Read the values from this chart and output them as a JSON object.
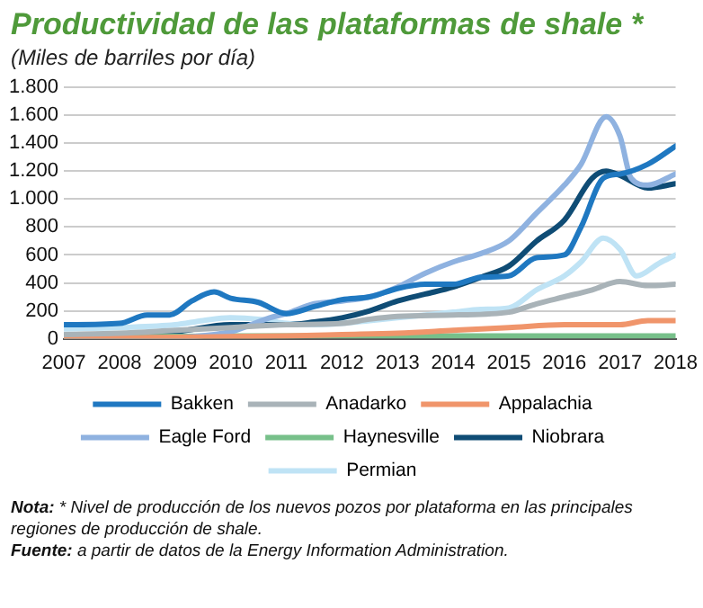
{
  "chart_data": {
    "type": "line",
    "title": "Productividad de las plataformas de shale *",
    "subtitle": "(Miles de barriles por día)",
    "xlim": [
      2007,
      2018
    ],
    "xticks": [
      2007,
      2008,
      2009,
      2010,
      2011,
      2012,
      2013,
      2014,
      2015,
      2016,
      2017,
      2018
    ],
    "ylim": [
      0,
      1800
    ],
    "yticks": [
      {
        "value": 0,
        "label": "0"
      },
      {
        "value": 200,
        "label": "200"
      },
      {
        "value": 400,
        "label": "400"
      },
      {
        "value": 600,
        "label": "600"
      },
      {
        "value": 800,
        "label": "800"
      },
      {
        "value": 1000,
        "label": "1.000"
      },
      {
        "value": 1200,
        "label": "1.200"
      },
      {
        "value": 1400,
        "label": "1.400"
      },
      {
        "value": 1600,
        "label": "1.600"
      },
      {
        "value": 1800,
        "label": "1.800"
      }
    ],
    "grid": "y",
    "legend": "bottom",
    "marker": "none",
    "line_style": "solid",
    "series": [
      {
        "name": "Bakken",
        "color": "#1f78c1",
        "x": [
          2007,
          2008,
          2008.5,
          2008.9,
          2009.3,
          2009.7,
          2010,
          2010.5,
          2011,
          2011.5,
          2012,
          2012.5,
          2013,
          2013.5,
          2014,
          2014.5,
          2015,
          2015.5,
          2016,
          2016.3,
          2016.7,
          2017,
          2017.5,
          2018
        ],
        "values": [
          100,
          110,
          170,
          170,
          270,
          335,
          290,
          260,
          180,
          230,
          280,
          300,
          360,
          390,
          390,
          440,
          450,
          580,
          600,
          800,
          1150,
          1180,
          1250,
          1380
        ]
      },
      {
        "name": "Anadarko",
        "color": "#a9b3b8",
        "x": [
          2007,
          2008,
          2009,
          2010,
          2011,
          2012,
          2012.5,
          2013,
          2014,
          2015,
          2015.5,
          2016,
          2016.5,
          2017,
          2017.5,
          2018
        ],
        "values": [
          30,
          40,
          60,
          80,
          100,
          110,
          140,
          160,
          170,
          190,
          250,
          300,
          350,
          410,
          380,
          390
        ]
      },
      {
        "name": "Appalachia",
        "color": "#f0956b",
        "x": [
          2007,
          2009,
          2011,
          2012,
          2013,
          2014,
          2015,
          2016,
          2017,
          2017.5,
          2018
        ],
        "values": [
          0,
          10,
          20,
          30,
          40,
          60,
          80,
          100,
          100,
          130,
          130
        ]
      },
      {
        "name": "Eagle Ford",
        "color": "#8fb2e0",
        "x": [
          2007,
          2009,
          2010,
          2010.7,
          2011,
          2011.5,
          2012,
          2012.5,
          2013,
          2013.5,
          2014,
          2014.5,
          2015,
          2015.5,
          2016,
          2016.3,
          2016.75,
          2017,
          2017.2,
          2017.5,
          2018
        ],
        "values": [
          0,
          10,
          50,
          150,
          180,
          250,
          270,
          300,
          370,
          470,
          550,
          610,
          700,
          900,
          1100,
          1250,
          1590,
          1450,
          1150,
          1100,
          1180
        ]
      },
      {
        "name": "Haynesville",
        "color": "#77c08a",
        "x": [
          2007,
          2010,
          2012,
          2014,
          2016,
          2018
        ],
        "values": [
          10,
          20,
          20,
          20,
          20,
          20
        ]
      },
      {
        "name": "Niobrara",
        "color": "#0f4c75",
        "x": [
          2007,
          2008,
          2009,
          2010,
          2011,
          2011.5,
          2012,
          2012.5,
          2013,
          2013.5,
          2014,
          2014.5,
          2015,
          2015.5,
          2016,
          2016.5,
          2016.75,
          2017,
          2017.5,
          2018
        ],
        "values": [
          20,
          30,
          50,
          100,
          100,
          120,
          150,
          200,
          270,
          320,
          370,
          440,
          520,
          700,
          850,
          1150,
          1200,
          1170,
          1080,
          1110
        ]
      },
      {
        "name": "Permian",
        "color": "#bfe3f5",
        "x": [
          2007,
          2008,
          2009,
          2009.5,
          2010,
          2010.5,
          2011,
          2011.5,
          2012,
          2012.5,
          2013,
          2013.5,
          2014,
          2014.5,
          2015,
          2015.5,
          2016,
          2016.3,
          2016.7,
          2017,
          2017.3,
          2017.7,
          2018
        ],
        "values": [
          70,
          80,
          100,
          130,
          150,
          140,
          110,
          100,
          110,
          130,
          150,
          170,
          190,
          210,
          220,
          350,
          450,
          550,
          720,
          640,
          450,
          540,
          600
        ]
      }
    ],
    "annotations": [
      "Nota: * Nivel de producción de los nuevos pozos por plataforma en las principales regiones de producción de shale.",
      "Fuente: a partir de datos de la Energy Information Administration."
    ]
  }
}
